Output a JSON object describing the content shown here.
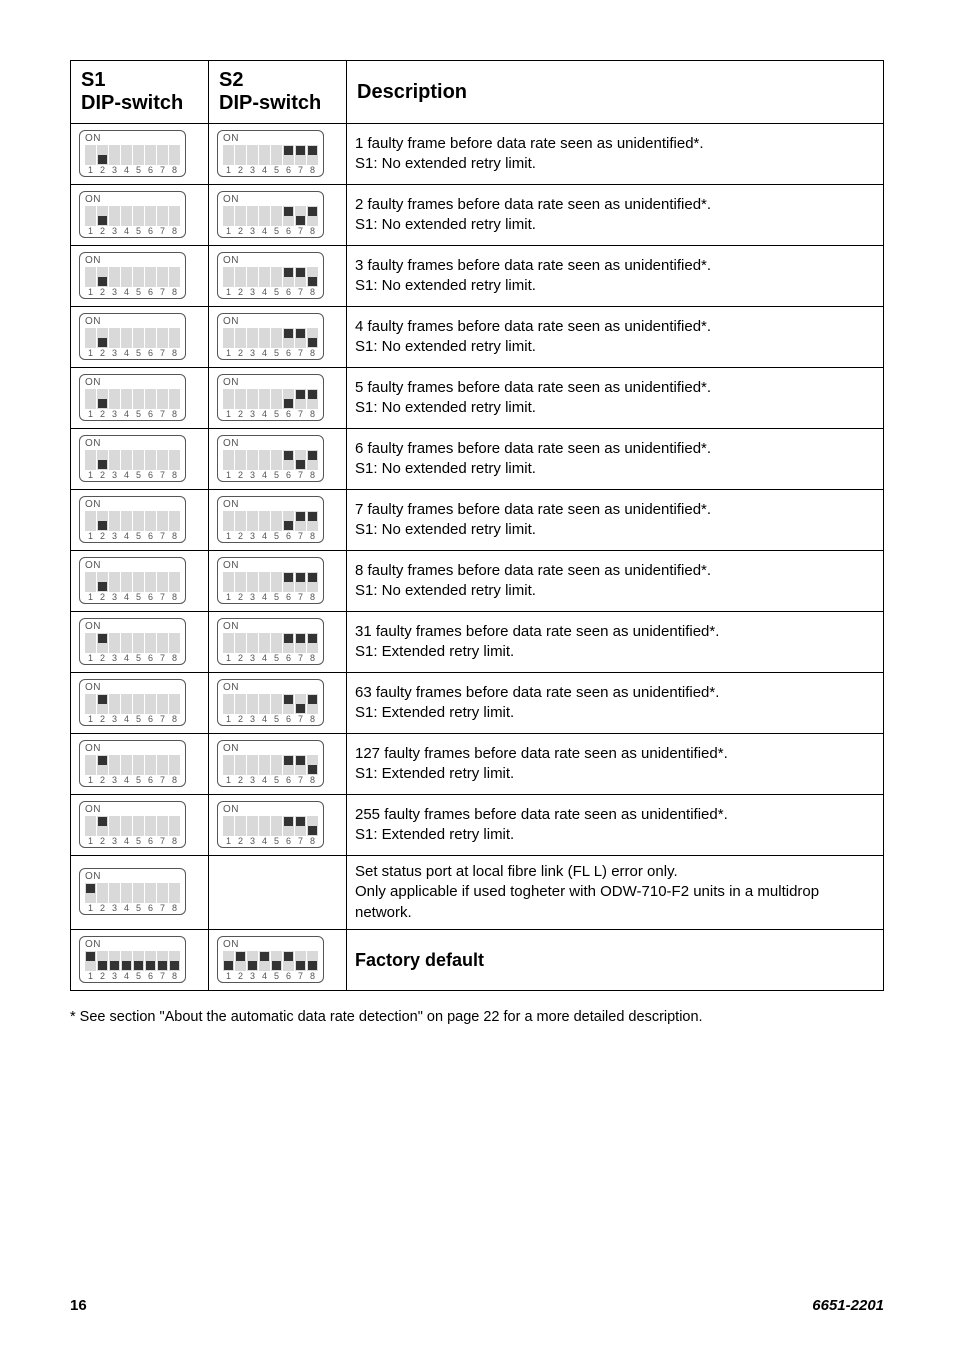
{
  "header": {
    "col1_line1": "S1",
    "col1_line2": "DIP-switch",
    "col2_line1": "S2",
    "col2_line2": "DIP-switch",
    "col3": "Description"
  },
  "rows": [
    {
      "s1": [
        null,
        "off",
        null,
        null,
        null,
        null,
        null,
        null
      ],
      "s2": [
        null,
        null,
        null,
        null,
        null,
        "on",
        "on",
        "on"
      ],
      "d1": "1 faulty frame before data rate seen as unidentified*.",
      "d2": "S1: No extended retry limit."
    },
    {
      "s1": [
        null,
        "off",
        null,
        null,
        null,
        null,
        null,
        null
      ],
      "s2": [
        null,
        null,
        null,
        null,
        null,
        "on",
        "off",
        "on"
      ],
      "d1": "2 faulty frames before data rate seen as unidentified*.",
      "d2": "S1: No extended retry limit."
    },
    {
      "s1": [
        null,
        "off",
        null,
        null,
        null,
        null,
        null,
        null
      ],
      "s2": [
        null,
        null,
        null,
        null,
        null,
        "on",
        "on",
        "off"
      ],
      "d1": "3 faulty frames before data rate seen as unidentified*.",
      "d2": "S1: No extended retry limit."
    },
    {
      "s1": [
        null,
        "off",
        null,
        null,
        null,
        null,
        null,
        null
      ],
      "s2": [
        null,
        null,
        null,
        null,
        null,
        "on",
        "on",
        "off"
      ],
      "d1": "4 faulty frames before data rate seen as unidentified*.",
      "d2": "S1: No extended retry limit."
    },
    {
      "s1": [
        null,
        "off",
        null,
        null,
        null,
        null,
        null,
        null
      ],
      "s2": [
        null,
        null,
        null,
        null,
        null,
        "off",
        "on",
        "on"
      ],
      "d1": "5 faulty frames before data rate seen as unidentified*.",
      "d2": "S1: No extended retry limit."
    },
    {
      "s1": [
        null,
        "off",
        null,
        null,
        null,
        null,
        null,
        null
      ],
      "s2": [
        null,
        null,
        null,
        null,
        null,
        "on",
        "off",
        "on"
      ],
      "d1": "6 faulty frames before data rate seen as unidentified*.",
      "d2": "S1: No extended retry limit."
    },
    {
      "s1": [
        null,
        "off",
        null,
        null,
        null,
        null,
        null,
        null
      ],
      "s2": [
        null,
        null,
        null,
        null,
        null,
        "off",
        "on",
        "on"
      ],
      "d1": "7 faulty frames before data rate seen as unidentified*.",
      "d2": "S1: No extended retry limit."
    },
    {
      "s1": [
        null,
        "off",
        null,
        null,
        null,
        null,
        null,
        null
      ],
      "s2": [
        null,
        null,
        null,
        null,
        null,
        "on",
        "on",
        "on"
      ],
      "d1": "8 faulty frames before data rate seen as unidentified*.",
      "d2": "S1: No extended retry limit."
    },
    {
      "s1": [
        null,
        "on",
        null,
        null,
        null,
        null,
        null,
        null
      ],
      "s2": [
        null,
        null,
        null,
        null,
        null,
        "on",
        "on",
        "on"
      ],
      "d1": "31 faulty frames before data rate seen as unidentified*.",
      "d2": "S1: Extended retry limit."
    },
    {
      "s1": [
        null,
        "on",
        null,
        null,
        null,
        null,
        null,
        null
      ],
      "s2": [
        null,
        null,
        null,
        null,
        null,
        "on",
        "off",
        "on"
      ],
      "d1": "63 faulty frames before data rate seen as unidentified*.",
      "d2": "S1: Extended retry limit."
    },
    {
      "s1": [
        null,
        "on",
        null,
        null,
        null,
        null,
        null,
        null
      ],
      "s2": [
        null,
        null,
        null,
        null,
        null,
        "on",
        "on",
        "off"
      ],
      "d1": "127 faulty frames before data rate seen as unidentified*.",
      "d2": "S1: Extended retry limit."
    },
    {
      "s1": [
        null,
        "on",
        null,
        null,
        null,
        null,
        null,
        null
      ],
      "s2": [
        null,
        null,
        null,
        null,
        null,
        "on",
        "on",
        "off"
      ],
      "d1": "255 faulty frames before data rate seen as unidentified*.",
      "d2": "S1: Extended retry limit."
    },
    {
      "s1": [
        "on",
        null,
        null,
        null,
        null,
        null,
        null,
        null
      ],
      "s2": null,
      "d1": "Set status port at local fibre link (FL L) error only.",
      "d2": "Only applicable if used togheter with ODW-710-F2 units in a multidrop network."
    },
    {
      "s1": [
        "on",
        "off",
        "off",
        "off",
        "off",
        "off",
        "off",
        "off"
      ],
      "s2": [
        "off",
        "on",
        "off",
        "on",
        "off",
        "on",
        "off",
        "off"
      ],
      "d1": "Factory default",
      "d2": "",
      "bold": true
    }
  ],
  "footnote": "* See section \"About the automatic data rate detection\" on page 22 for a more detailed description.",
  "footer": {
    "page": "16",
    "doc": "6651-2201"
  },
  "dip_numbers": [
    "1",
    "2",
    "3",
    "4",
    "5",
    "6",
    "7",
    "8"
  ],
  "on_label": "ON"
}
